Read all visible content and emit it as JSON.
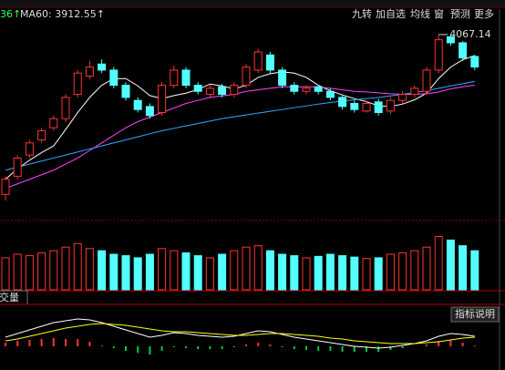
{
  "toolbar": {
    "left_cut": "36↑",
    "ma_legend": "MA60: 3912.55↑",
    "buttons": [
      "九转",
      "加自选",
      "均线",
      "窗",
      "预测",
      "更多"
    ]
  },
  "volume_label": "成交量",
  "indicator_button": "指标说明",
  "chart_data": [
    {
      "type": "candlestick",
      "ylim": [
        3460,
        4115
      ],
      "up_color": "#ff3232",
      "down_color": "#54ffff",
      "open": [
        3540,
        3600,
        3670,
        3720,
        3760,
        3790,
        3870,
        3930,
        3970,
        3950,
        3900,
        3850,
        3830,
        3810,
        3900,
        3950,
        3900,
        3870,
        3895,
        3870,
        3900,
        3950,
        4000,
        3950,
        3900,
        3880,
        3895,
        3880,
        3860,
        3840,
        3815,
        3845,
        3815,
        3850,
        3870,
        3880,
        3950,
        4060,
        4040,
        3995
      ],
      "high": [
        3600,
        3670,
        3720,
        3760,
        3800,
        3870,
        3950,
        3980,
        3985,
        3960,
        3910,
        3860,
        3840,
        3910,
        3965,
        3960,
        3910,
        3900,
        3905,
        3910,
        3970,
        4020,
        4010,
        3960,
        3910,
        3900,
        3900,
        3890,
        3870,
        3850,
        3850,
        3855,
        3860,
        3880,
        3900,
        3960,
        4067.14,
        4065,
        4045,
        4000
      ],
      "low": [
        3520,
        3590,
        3660,
        3710,
        3750,
        3780,
        3860,
        3920,
        3940,
        3890,
        3850,
        3810,
        3790,
        3800,
        3890,
        3890,
        3870,
        3860,
        3860,
        3860,
        3890,
        3940,
        3940,
        3890,
        3870,
        3870,
        3870,
        3850,
        3820,
        3810,
        3810,
        3800,
        3805,
        3840,
        3860,
        3870,
        3940,
        4030,
        3980,
        3950
      ],
      "close": [
        3590,
        3660,
        3710,
        3750,
        3790,
        3860,
        3940,
        3960,
        3950,
        3900,
        3860,
        3820,
        3800,
        3900,
        3950,
        3900,
        3880,
        3890,
        3870,
        3900,
        3960,
        4010,
        3950,
        3900,
        3880,
        3890,
        3880,
        3860,
        3830,
        3820,
        3840,
        3810,
        3850,
        3870,
        3890,
        3950,
        4050,
        4040,
        3990,
        3960
      ],
      "series": [
        {
          "color": "#ffffff",
          "values": [
            3590,
            3625,
            3653,
            3678,
            3700,
            3754,
            3810,
            3860,
            3900,
            3922,
            3922,
            3898,
            3866,
            3856,
            3866,
            3874,
            3886,
            3904,
            3898,
            3888,
            3900,
            3926,
            3938,
            3944,
            3940,
            3926,
            3900,
            3882,
            3868,
            3856,
            3846,
            3832,
            3830,
            3838,
            3852,
            3874,
            3922,
            3960,
            3984,
            3998
          ]
        },
        {
          "color": "#ff44ff",
          "values": [
            3560,
            3575,
            3590,
            3605,
            3620,
            3640,
            3660,
            3685,
            3710,
            3735,
            3760,
            3780,
            3795,
            3810,
            3825,
            3840,
            3850,
            3860,
            3865,
            3870,
            3880,
            3885,
            3890,
            3895,
            3895,
            3895,
            3895,
            3890,
            3885,
            3880,
            3878,
            3875,
            3872,
            3870,
            3870,
            3872,
            3878,
            3888,
            3895,
            3900
          ]
        },
        {
          "name": "MA60",
          "color": "#33aaff",
          "values": [
            3620,
            3630,
            3640,
            3650,
            3660,
            3670,
            3680,
            3690,
            3700,
            3710,
            3720,
            3730,
            3740,
            3750,
            3758,
            3766,
            3774,
            3782,
            3790,
            3796,
            3802,
            3808,
            3814,
            3820,
            3826,
            3832,
            3838,
            3843,
            3848,
            3852,
            3856,
            3860,
            3865,
            3870,
            3876,
            3882,
            3890,
            3898,
            3905,
            3912.55
          ]
        }
      ]
    },
    {
      "type": "bar",
      "ylim": [
        0,
        100
      ],
      "values": [
        45,
        50,
        48,
        52,
        55,
        60,
        65,
        58,
        55,
        50,
        48,
        45,
        50,
        58,
        55,
        52,
        48,
        45,
        50,
        55,
        60,
        62,
        55,
        50,
        48,
        45,
        47,
        50,
        48,
        46,
        44,
        45,
        50,
        52,
        55,
        60,
        75,
        70,
        62,
        55
      ]
    },
    {
      "type": "macd",
      "ylim": [
        -20,
        40
      ],
      "up_color": "#ff3232",
      "down_color": "#00cc44",
      "values": [
        4,
        6,
        7,
        8,
        9,
        8,
        8,
        5,
        1,
        -2,
        -5,
        -7,
        -9,
        -5,
        -1,
        -2,
        -3,
        -3,
        -3,
        -1,
        2,
        4,
        2,
        -1,
        -3,
        -4,
        -5,
        -5,
        -6,
        -6,
        -6,
        -6,
        -4,
        -2,
        0,
        2,
        6,
        7,
        4,
        1
      ],
      "series": [
        {
          "color": "#ffffff",
          "values": [
            10,
            14,
            18,
            22,
            26,
            28,
            30,
            29,
            26,
            22,
            18,
            14,
            10,
            12,
            15,
            14,
            12,
            11,
            10,
            11,
            14,
            17,
            16,
            13,
            10,
            8,
            6,
            4,
            2,
            0,
            -1,
            -2,
            -1,
            1,
            3,
            6,
            11,
            14,
            13,
            11
          ]
        },
        {
          "color": "#ffff00",
          "values": [
            6,
            8,
            11,
            14,
            17,
            20,
            22,
            24,
            25,
            24,
            23,
            21,
            19,
            17,
            16,
            16,
            15,
            14,
            13,
            12,
            12,
            13,
            14,
            14,
            13,
            12,
            11,
            9,
            8,
            6,
            5,
            4,
            3,
            3,
            3,
            4,
            5,
            7,
            9,
            10
          ]
        }
      ]
    }
  ]
}
